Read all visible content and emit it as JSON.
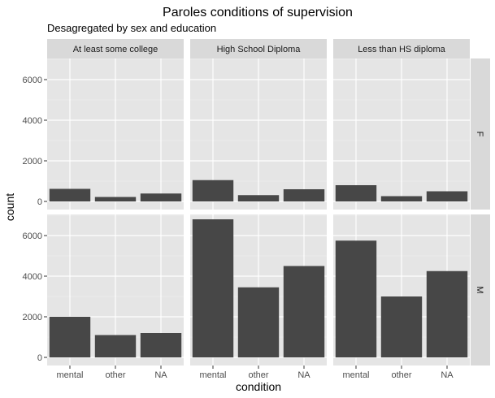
{
  "chart_data": {
    "type": "bar",
    "title": "Paroles conditions of supervision",
    "subtitle": "Desagregated by sex and education",
    "xlabel": "condition",
    "ylabel": "count",
    "categories": [
      "mental",
      "other",
      "NA"
    ],
    "ylim": [
      0,
      7000
    ],
    "yticks": [
      0,
      2000,
      4000,
      6000
    ],
    "grid": true,
    "column_facets": [
      "At least some college",
      "High School Diploma",
      "Less than HS diploma"
    ],
    "row_facets": [
      "F",
      "M"
    ],
    "bar_color": "#474747",
    "panel_background": "#e5e5e5",
    "strip_background": "#d9d9d9",
    "panels": [
      {
        "row": "F",
        "column": "At least some college",
        "values": [
          620,
          220,
          390
        ]
      },
      {
        "row": "F",
        "column": "High School Diploma",
        "values": [
          1050,
          310,
          600
        ]
      },
      {
        "row": "F",
        "column": "Less than HS diploma",
        "values": [
          800,
          260,
          500
        ]
      },
      {
        "row": "M",
        "column": "At least some college",
        "values": [
          2000,
          1100,
          1200
        ]
      },
      {
        "row": "M",
        "column": "High School Diploma",
        "values": [
          6800,
          3450,
          4500
        ]
      },
      {
        "row": "M",
        "column": "Less than HS diploma",
        "values": [
          5750,
          3000,
          4250
        ]
      }
    ]
  }
}
